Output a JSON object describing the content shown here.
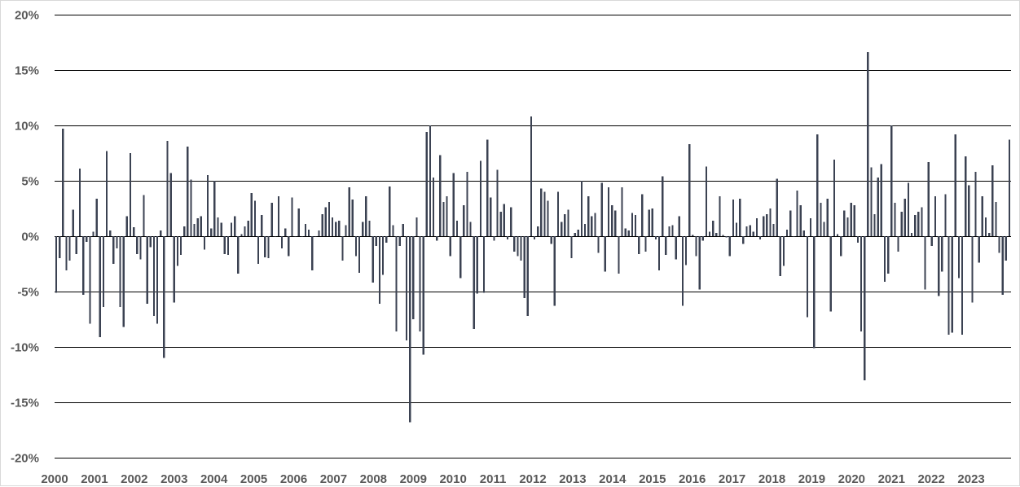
{
  "chart_data": {
    "type": "bar",
    "title": "",
    "xlabel": "",
    "ylabel": "",
    "ylim": [
      -0.2,
      0.2
    ],
    "yticks": [
      0.2,
      0.15,
      0.1,
      0.05,
      0.0,
      -0.05,
      -0.1,
      -0.15,
      -0.2
    ],
    "ytick_labels": [
      "20%",
      "15%",
      "10%",
      "5%",
      "0%",
      "-5%",
      "-10%",
      "-15%",
      "-20%"
    ],
    "xtick_labels": [
      "2000",
      "2001",
      "2002",
      "2003",
      "2004",
      "2005",
      "2006",
      "2007",
      "2008",
      "2009",
      "2010",
      "2011",
      "2012",
      "2013",
      "2014",
      "2015",
      "2016",
      "2017",
      "2018",
      "2019",
      "2020",
      "2021",
      "2022",
      "2023"
    ],
    "x_start": "2000-01",
    "x_end": "2023-12",
    "grid": true,
    "legend": "none",
    "bar_color": "#3b4252",
    "grid_color": "#000000",
    "values": [
      -5.1,
      -2.0,
      9.7,
      -3.1,
      -2.2,
      2.4,
      -1.6,
      6.1,
      -5.3,
      -0.5,
      -7.9,
      0.4,
      3.4,
      -9.1,
      -6.4,
      7.7,
      0.5,
      -2.5,
      -1.1,
      -6.4,
      -8.2,
      1.8,
      7.5,
      0.8,
      -1.6,
      -2.1,
      3.7,
      -6.1,
      -1.0,
      -7.2,
      -7.9,
      0.5,
      -11.0,
      8.6,
      5.7,
      -6.0,
      -2.7,
      -1.7,
      0.9,
      8.1,
      5.1,
      1.1,
      1.6,
      1.8,
      -1.2,
      5.5,
      0.7,
      5.0,
      1.7,
      1.2,
      -1.6,
      -1.7,
      1.2,
      1.8,
      -3.4,
      0.2,
      0.9,
      1.4,
      3.9,
      3.2,
      -2.5,
      1.9,
      -1.9,
      -2.0,
      3.0,
      0.0,
      3.6,
      -1.1,
      0.7,
      -1.8,
      3.5,
      0.0,
      2.5,
      0.0,
      1.1,
      0.6,
      -3.1,
      0.0,
      0.5,
      2.0,
      2.6,
      3.1,
      1.7,
      1.3,
      1.4,
      -2.2,
      1.0,
      4.4,
      3.3,
      -1.8,
      -3.3,
      1.3,
      3.6,
      1.4,
      -4.2,
      -0.9,
      -6.1,
      -3.5,
      -0.6,
      4.5,
      1.0,
      -8.6,
      -0.9,
      1.1,
      -9.4,
      -16.8,
      -7.5,
      1.7,
      -8.6,
      -10.7,
      9.4,
      10.0,
      5.3,
      -0.4,
      7.3,
      3.1,
      3.6,
      -1.8,
      5.7,
      1.4,
      -3.8,
      2.8,
      5.8,
      1.3,
      -8.4,
      -5.2,
      6.8,
      -5.1,
      8.7,
      3.5,
      -0.4,
      6.0,
      2.2,
      2.9,
      -0.3,
      2.6,
      -1.4,
      -1.8,
      -2.2,
      -5.6,
      -7.2,
      10.8,
      -0.3,
      0.9,
      4.3,
      4.0,
      3.2,
      -0.7,
      -6.3,
      4.0,
      1.3,
      2.0,
      2.4,
      -2.0,
      0.3,
      0.6,
      5.0,
      1.1,
      3.6,
      1.8,
      2.1,
      -1.5,
      4.8,
      -3.2,
      4.4,
      2.8,
      2.3,
      -3.4,
      4.4,
      0.7,
      0.5,
      2.1,
      1.9,
      -1.6,
      3.8,
      -1.4,
      2.4,
      2.5,
      -0.3,
      -3.1,
      5.4,
      -1.7,
      0.9,
      1.0,
      -2.1,
      1.8,
      -6.3,
      -2.6,
      8.3,
      0.1,
      -1.8,
      -4.8,
      -0.4,
      6.3,
      0.4,
      1.4,
      0.3,
      3.6,
      0.1,
      -0.1,
      -1.8,
      3.3,
      1.2,
      3.4,
      -0.7,
      0.9,
      1.0,
      0.4,
      1.6,
      -0.3,
      1.8,
      2.0,
      2.5,
      1.1,
      5.2,
      -3.6,
      -2.7,
      0.6,
      2.3,
      0.0,
      4.1,
      2.8,
      0.5,
      -7.3,
      1.6,
      -10.1,
      9.2,
      3.0,
      1.3,
      3.4,
      -6.8,
      6.9,
      0.2,
      -1.8,
      2.3,
      1.7,
      3.0,
      2.8,
      -0.6,
      -8.6,
      -13.0,
      16.6,
      6.2,
      2.0,
      5.3,
      6.5,
      -4.1,
      -3.4,
      10.0,
      3.0,
      -1.4,
      2.2,
      3.4,
      4.8,
      0.3,
      1.9,
      2.2,
      2.6,
      -4.8,
      6.7,
      -0.9,
      3.6,
      -5.4,
      -3.2,
      3.8,
      -8.9,
      -8.7,
      9.2,
      -3.8,
      -8.9,
      7.2,
      4.6,
      -6.0,
      5.8,
      -2.4,
      3.6,
      1.7,
      0.3,
      6.4,
      3.1,
      -1.5,
      -5.3,
      -2.2,
      8.7
    ]
  }
}
